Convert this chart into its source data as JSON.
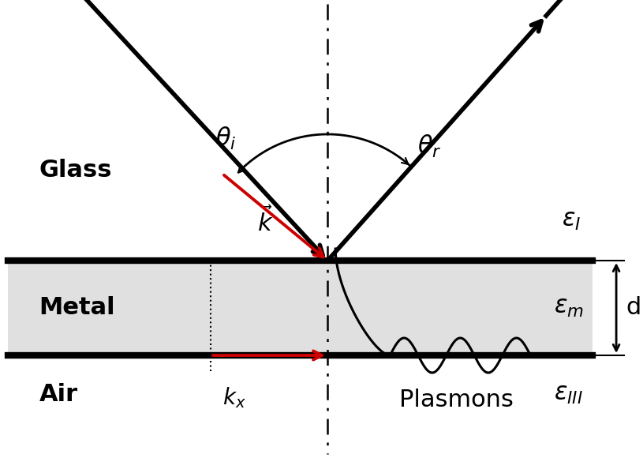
{
  "bg_color": "#ffffff",
  "glass_label": "Glass",
  "metal_label": "Metal",
  "air_label": "Air",
  "eps_I": "$\\varepsilon_{I}$",
  "eps_m": "$\\varepsilon_{m}$",
  "eps_III": "$\\varepsilon_{III}$",
  "d_label": "d",
  "kx_label": "$k_x$",
  "plasmons_label": "Plasmons",
  "k_vec_label": "$\\vec{k}$",
  "theta_i_label": "$\\theta_i$",
  "theta_r_label": "$\\theta_r$",
  "metal_color": "#e0e0e0",
  "line_color": "#000000",
  "red_color": "#cc0000",
  "lw_thick": 4.0,
  "lw_border": 6.0,
  "lw_thin": 1.8
}
